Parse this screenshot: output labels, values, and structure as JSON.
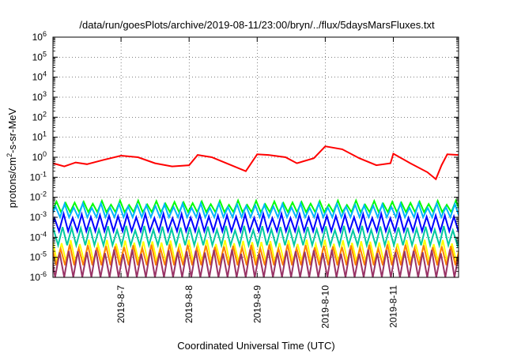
{
  "chart_data": {
    "type": "line",
    "title": "/data/run/goesPlots/archive/2019-08-11/23:00/bryn/../flux/5daysMarsFluxes.txt",
    "xlabel": "Coordinated Universal Time (UTC)",
    "ylabel_prefix": "protons/cm",
    "ylabel_sup": "2",
    "ylabel_suffix": "-s-sr-MeV",
    "y_scale": "log",
    "ylim": [
      1e-06,
      1000000.0
    ],
    "y_ticks": [
      {
        "base": "10",
        "exp": "-6",
        "value": 1e-06
      },
      {
        "base": "10",
        "exp": "-5",
        "value": 1e-05
      },
      {
        "base": "10",
        "exp": "-4",
        "value": 0.0001
      },
      {
        "base": "10",
        "exp": "-3",
        "value": 0.001
      },
      {
        "base": "10",
        "exp": "-2",
        "value": 0.01
      },
      {
        "base": "10",
        "exp": "-1",
        "value": 0.1
      },
      {
        "base": "10",
        "exp": "0",
        "value": 1
      },
      {
        "base": "10",
        "exp": "1",
        "value": 10.0
      },
      {
        "base": "10",
        "exp": "2",
        "value": 100.0
      },
      {
        "base": "10",
        "exp": "3",
        "value": 1000.0
      },
      {
        "base": "10",
        "exp": "4",
        "value": 10000.0
      },
      {
        "base": "10",
        "exp": "5",
        "value": 100000.0
      },
      {
        "base": "10",
        "exp": "6",
        "value": 1000000.0
      }
    ],
    "xlim": [
      "2019-08-06 00:00",
      "2019-08-11 23:00"
    ],
    "x_ticks": [
      {
        "label": "2019-8-7",
        "value": "2019-08-07"
      },
      {
        "label": "2019-8-8",
        "value": "2019-08-08"
      },
      {
        "label": "2019-8-9",
        "value": "2019-08-09"
      },
      {
        "label": "2019-8-10",
        "value": "2019-08-10"
      },
      {
        "label": "2019-8-11",
        "value": "2019-08-11"
      }
    ],
    "grid": true,
    "series": [
      {
        "color": "#ff0000",
        "points": [
          [
            "2019-08-06 00:00",
            0.5
          ],
          [
            "2019-08-06 04:00",
            0.35
          ],
          [
            "2019-08-06 08:00",
            0.55
          ],
          [
            "2019-08-06 12:00",
            0.45
          ],
          [
            "2019-08-06 18:00",
            0.75
          ],
          [
            "2019-08-07 00:00",
            1.2
          ],
          [
            "2019-08-07 06:00",
            1.0
          ],
          [
            "2019-08-07 12:00",
            0.5
          ],
          [
            "2019-08-07 18:00",
            0.35
          ],
          [
            "2019-08-08 00:00",
            0.4
          ],
          [
            "2019-08-08 03:00",
            1.3
          ],
          [
            "2019-08-08 08:00",
            1.0
          ],
          [
            "2019-08-08 14:00",
            0.45
          ],
          [
            "2019-08-08 20:00",
            0.2
          ],
          [
            "2019-08-09 00:00",
            1.4
          ],
          [
            "2019-08-09 04:00",
            1.3
          ],
          [
            "2019-08-09 10:00",
            1.0
          ],
          [
            "2019-08-09 14:00",
            0.5
          ],
          [
            "2019-08-09 20:00",
            0.9
          ],
          [
            "2019-08-10 00:00",
            3.5
          ],
          [
            "2019-08-10 06:00",
            2.5
          ],
          [
            "2019-08-10 12:00",
            0.9
          ],
          [
            "2019-08-10 18:00",
            0.4
          ],
          [
            "2019-08-10 23:00",
            0.5
          ],
          [
            "2019-08-11 00:00",
            1.5
          ],
          [
            "2019-08-11 06:00",
            0.5
          ],
          [
            "2019-08-11 12:00",
            0.18
          ],
          [
            "2019-08-11 15:00",
            0.08
          ],
          [
            "2019-08-11 17:00",
            0.4
          ],
          [
            "2019-08-11 19:00",
            1.4
          ],
          [
            "2019-08-11 23:00",
            1.3
          ]
        ]
      },
      {
        "color": "#00ff00",
        "period_hours": 3.2,
        "peak": 0.0055,
        "trough": 0.0018
      },
      {
        "color": "#00b4ff",
        "period_hours": 3.2,
        "peak": 0.004,
        "trough": 0.001
      },
      {
        "color": "#0000ff",
        "period_hours": 3.2,
        "peak": 0.0012,
        "trough": 0.0002
      },
      {
        "color": "#00c8a0",
        "period_hours": 3.2,
        "peak": 0.0003,
        "trough": 4e-05
      },
      {
        "color": "#ffff00",
        "period_hours": 3.2,
        "peak": 6e-05,
        "trough": 6e-06
      },
      {
        "color": "#ff8000",
        "period_hours": 3.2,
        "peak": 3.5e-05,
        "trough": 4e-06
      },
      {
        "color": "#993366",
        "period_hours": 3.2,
        "peak": 2e-05,
        "trough": 1e-06
      }
    ]
  }
}
